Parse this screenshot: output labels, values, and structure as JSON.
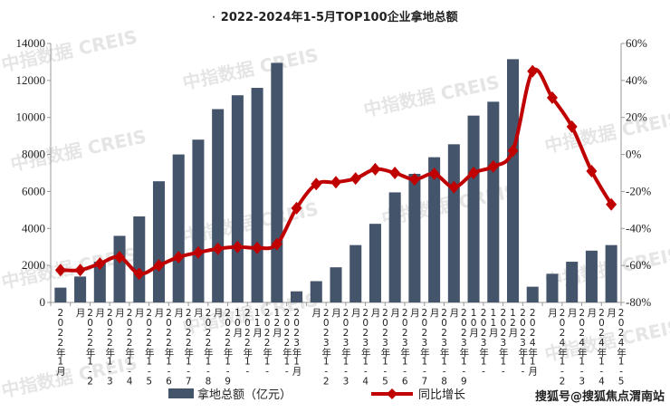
{
  "chart_data": {
    "type": "bar+line",
    "title": "2022-2024年1-5月TOP100企业拿地总额",
    "categories": [
      "2022年1月",
      "2022年1-2月",
      "2022年1-3月",
      "2022年1-4月",
      "2022年1-5月",
      "2022年1-6月",
      "2022年1-7月",
      "2022年1-8月",
      "2022年1-9月",
      "2022年1-10月",
      "2022年1-11月",
      "2022年1-12月",
      "2023年1月",
      "2023年1-2月",
      "2023年1-3月",
      "2023年1-4月",
      "2023年1-5月",
      "2023年1-6月",
      "2023年1-7月",
      "2023年1-8月",
      "2023年1-9月",
      "2023年1-10月",
      "2023年1-11月",
      "2023年1-12月",
      "2024年1月",
      "2024年1-2月",
      "2024年1-3月",
      "2024年1-4月",
      "2024年1-5月"
    ],
    "series": [
      {
        "name": "拿地总额（亿元）",
        "type": "bar",
        "axis": "left",
        "color": "#44546a",
        "values": [
          800,
          1400,
          2200,
          3600,
          4650,
          6550,
          8000,
          8800,
          10450,
          11200,
          11600,
          12950,
          600,
          1150,
          1900,
          3100,
          4250,
          5950,
          6950,
          7850,
          8550,
          10100,
          10850,
          13150,
          850,
          1550,
          2200,
          2800,
          3100
        ]
      },
      {
        "name": "同比增长",
        "type": "line",
        "axis": "right",
        "color": "#c00000",
        "unit": "%",
        "values": [
          -62.5,
          -62.5,
          -59,
          -55.5,
          -64.5,
          -60,
          -55.5,
          -53,
          -51,
          -50,
          -50.5,
          -48.5,
          -29,
          -16,
          -15,
          -13,
          -8,
          -10,
          -13.5,
          -10.5,
          -17.7,
          -10,
          -6.5,
          2,
          45,
          30.7,
          15,
          -9,
          -27
        ]
      }
    ],
    "y_left": {
      "range": [
        0,
        14000
      ],
      "ticks": [
        "0",
        "2000",
        "4000",
        "6000",
        "8000",
        "10000",
        "12000",
        "14000"
      ]
    },
    "y_right": {
      "range": [
        -80,
        60
      ],
      "ticks": [
        "-80%",
        "-60%",
        "-40%",
        "-20%",
        "0%",
        "20%",
        "40%",
        "60%"
      ]
    },
    "grid": false,
    "legend_placement": "bottom"
  },
  "legend": {
    "bar_label": "拿地总额（亿元）",
    "line_label": "同比增长"
  },
  "watermark": "中指数据 CREIS",
  "footer": "搜狐号@搜狐焦点渭南站",
  "title_dot": "·"
}
